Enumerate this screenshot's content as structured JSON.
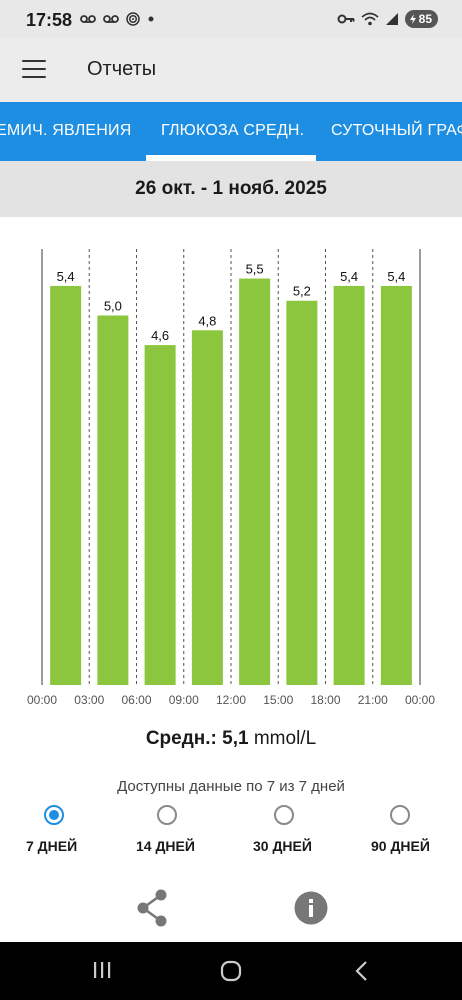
{
  "status_bar": {
    "time": "17:58",
    "battery": "85",
    "left_icons": [
      "voicemail-icon",
      "voicemail-icon",
      "target-icon",
      "dot-icon"
    ],
    "right_icons": [
      "key-icon",
      "wifi-icon",
      "signal-icon",
      "battery-icon"
    ]
  },
  "app_bar": {
    "title": "Отчеты",
    "menu_icon": "hamburger-menu-icon"
  },
  "tabs": [
    {
      "label": "ЕМИЧ. ЯВЛЕНИЯ",
      "active": false
    },
    {
      "label": "ГЛЮКОЗА СРЕДН.",
      "active": true
    },
    {
      "label": "СУТОЧНЫЙ ГРАФ",
      "active": false
    }
  ],
  "date_range": "26 окт. - 1 нояб. 2025",
  "chart_data": {
    "type": "bar",
    "categories": [
      "00:00-03:00",
      "03:00-06:00",
      "06:00-09:00",
      "09:00-12:00",
      "12:00-15:00",
      "15:00-18:00",
      "18:00-21:00",
      "21:00-00:00"
    ],
    "values": [
      5.4,
      5.0,
      4.6,
      4.8,
      5.5,
      5.2,
      5.4,
      5.4
    ],
    "value_labels": [
      "5,4",
      "5,0",
      "4,6",
      "4,8",
      "5,5",
      "5,2",
      "5,4",
      "5,4"
    ],
    "x_ticks": [
      "00:00",
      "03:00",
      "06:00",
      "09:00",
      "12:00",
      "15:00",
      "18:00",
      "21:00",
      "00:00"
    ],
    "bar_color": "#8cc63e",
    "ylim": [
      0,
      5.9
    ],
    "grid": "dashed-vertical"
  },
  "average": {
    "label": "Средн.:",
    "value": "5,1",
    "unit": "mmol/L"
  },
  "availability_text": "Доступны данные по 7 из 7 дней",
  "period_options": [
    {
      "label": "7 ДНЕЙ",
      "selected": true
    },
    {
      "label": "14 ДНЕЙ",
      "selected": false
    },
    {
      "label": "30 ДНЕЙ",
      "selected": false
    },
    {
      "label": "90 ДНЕЙ",
      "selected": false
    }
  ],
  "actions": {
    "share_icon": "share-icon",
    "info_icon": "info-icon"
  },
  "nav_bar": {
    "icons": [
      "recents-icon",
      "home-icon",
      "back-icon"
    ]
  },
  "colors": {
    "accent": "#1d8ee2",
    "bar": "#8cc63e",
    "header_bg": "#ececec",
    "date_bg": "#e3e3e3"
  }
}
